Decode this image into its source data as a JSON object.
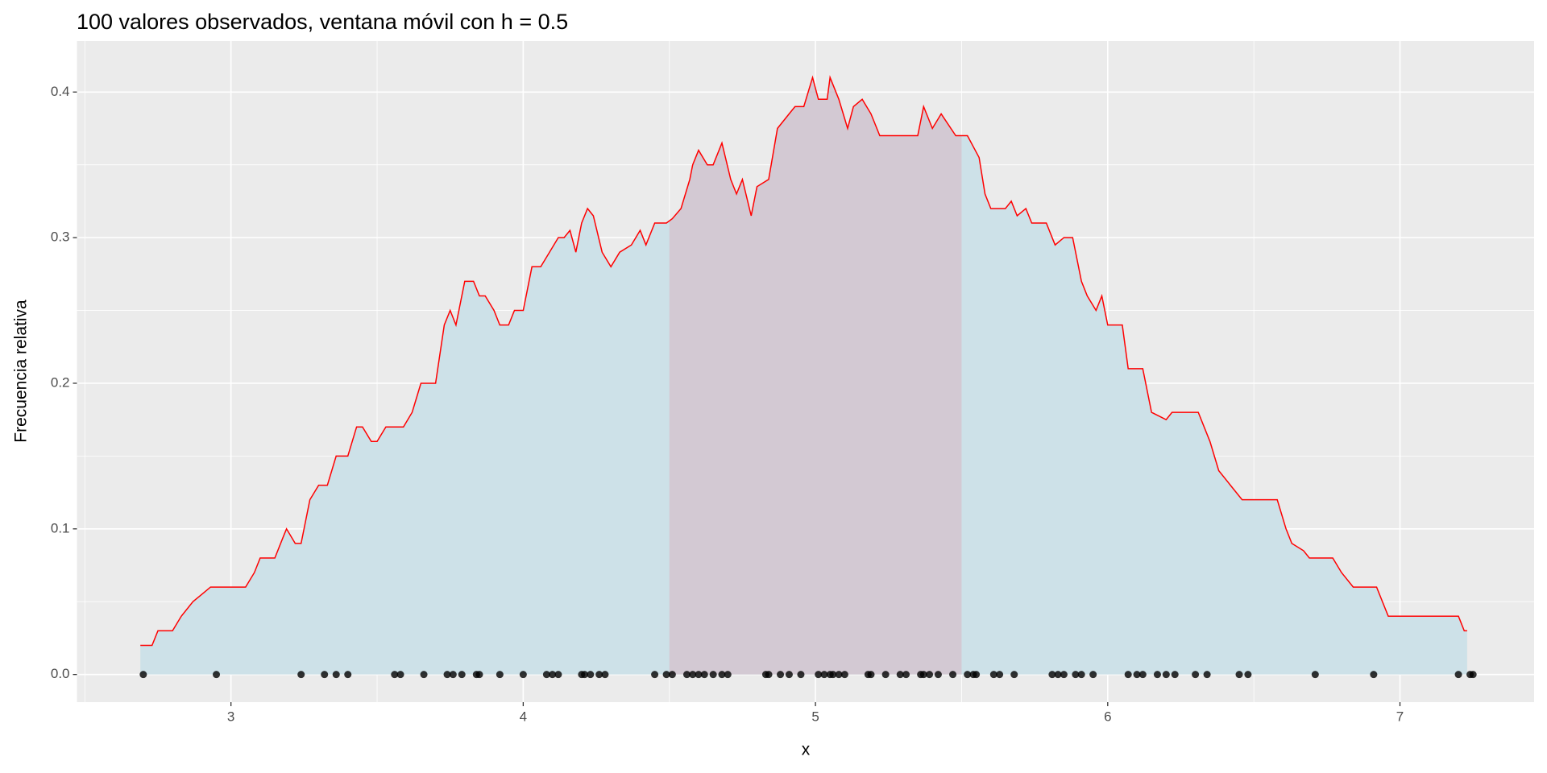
{
  "chart_data": {
    "type": "line",
    "title": "100 valores observados, ventana móvil con h = 0.5",
    "x_label": "x",
    "y_label": "Frecuencia relativa",
    "xlim": [
      2.473,
      7.459
    ],
    "ylim": [
      -0.019,
      0.435
    ],
    "xticks": [
      3,
      4,
      5,
      6,
      7
    ],
    "yticks": [
      {
        "value": 0,
        "label": "0.0"
      },
      0.1,
      0.2,
      0.3,
      0.4
    ],
    "grid": true,
    "minor_grid": true,
    "fill_color": "#cde1e8",
    "highlight_color": "#d3c9d3",
    "highlight_x": [
      4.5,
      5.5
    ],
    "series": [
      {
        "color": "#ff0000",
        "x": [
          2.69,
          2.73,
          2.75,
          2.8,
          2.83,
          2.87,
          2.9,
          2.93,
          3.05,
          3.08,
          3.1,
          3.15,
          3.18,
          3.19,
          3.22,
          3.24,
          3.27,
          3.3,
          3.33,
          3.36,
          3.4,
          3.43,
          3.45,
          3.48,
          3.5,
          3.53,
          3.59,
          3.62,
          3.65,
          3.7,
          3.73,
          3.75,
          3.77,
          3.8,
          3.83,
          3.85,
          3.87,
          3.9,
          3.92,
          3.95,
          3.97,
          4.0,
          4.03,
          4.06,
          4.09,
          4.12,
          4.14,
          4.16,
          4.18,
          4.2,
          4.22,
          4.24,
          4.27,
          4.3,
          4.33,
          4.37,
          4.4,
          4.42,
          4.45,
          4.49,
          4.51,
          4.54,
          4.57,
          4.58,
          4.6,
          4.63,
          4.65,
          4.68,
          4.71,
          4.73,
          4.75,
          4.78,
          4.8,
          4.84,
          4.87,
          4.91,
          4.93,
          4.96,
          4.99,
          5.01,
          5.04,
          5.05,
          5.08,
          5.11,
          5.13,
          5.16,
          5.19,
          5.22,
          5.35,
          5.37,
          5.4,
          5.43,
          5.48,
          5.52,
          5.56,
          5.58,
          5.6,
          5.65,
          5.67,
          5.69,
          5.72,
          5.74,
          5.79,
          5.82,
          5.85,
          5.88,
          5.91,
          5.93,
          5.96,
          5.98,
          6.0,
          6.05,
          6.07,
          6.12,
          6.15,
          6.2,
          6.22,
          6.31,
          6.35,
          6.38,
          6.42,
          6.46,
          6.58,
          6.61,
          6.63,
          6.67,
          6.69,
          6.77,
          6.8,
          6.84,
          6.92,
          6.96,
          7.2,
          7.22,
          7.23
        ],
        "values": [
          0.02,
          0.02,
          0.03,
          0.03,
          0.04,
          0.05,
          0.055,
          0.06,
          0.06,
          0.07,
          0.08,
          0.08,
          0.095,
          0.1,
          0.09,
          0.09,
          0.12,
          0.13,
          0.13,
          0.15,
          0.15,
          0.17,
          0.17,
          0.16,
          0.16,
          0.17,
          0.17,
          0.18,
          0.2,
          0.2,
          0.24,
          0.25,
          0.24,
          0.27,
          0.27,
          0.26,
          0.26,
          0.25,
          0.24,
          0.24,
          0.25,
          0.25,
          0.28,
          0.28,
          0.29,
          0.3,
          0.3,
          0.305,
          0.29,
          0.31,
          0.32,
          0.315,
          0.29,
          0.28,
          0.29,
          0.295,
          0.305,
          0.295,
          0.31,
          0.31,
          0.313,
          0.32,
          0.34,
          0.35,
          0.36,
          0.35,
          0.35,
          0.365,
          0.34,
          0.33,
          0.34,
          0.315,
          0.335,
          0.34,
          0.375,
          0.385,
          0.39,
          0.39,
          0.41,
          0.395,
          0.395,
          0.41,
          0.395,
          0.375,
          0.39,
          0.395,
          0.385,
          0.37,
          0.37,
          0.39,
          0.375,
          0.385,
          0.37,
          0.37,
          0.355,
          0.33,
          0.32,
          0.32,
          0.325,
          0.315,
          0.32,
          0.31,
          0.31,
          0.295,
          0.3,
          0.3,
          0.27,
          0.26,
          0.25,
          0.26,
          0.24,
          0.24,
          0.21,
          0.21,
          0.18,
          0.175,
          0.18,
          0.18,
          0.16,
          0.14,
          0.13,
          0.12,
          0.12,
          0.1,
          0.09,
          0.085,
          0.08,
          0.08,
          0.07,
          0.06,
          0.06,
          0.04,
          0.04,
          0.03,
          0.03
        ]
      }
    ],
    "points": {
      "color": "#000000",
      "x": [
        2.7,
        2.95,
        3.24,
        3.32,
        3.36,
        3.4,
        3.56,
        3.58,
        3.66,
        3.74,
        3.76,
        3.79,
        3.84,
        3.85,
        3.92,
        4.0,
        4.08,
        4.1,
        4.12,
        4.2,
        4.21,
        4.23,
        4.26,
        4.28,
        4.45,
        4.49,
        4.51,
        4.56,
        4.58,
        4.6,
        4.62,
        4.65,
        4.68,
        4.7,
        4.83,
        4.84,
        4.88,
        4.91,
        4.95,
        5.01,
        5.03,
        5.05,
        5.06,
        5.08,
        5.1,
        5.18,
        5.19,
        5.24,
        5.29,
        5.31,
        5.36,
        5.37,
        5.39,
        5.42,
        5.47,
        5.52,
        5.54,
        5.55,
        5.61,
        5.63,
        5.68,
        5.81,
        5.83,
        5.85,
        5.89,
        5.91,
        5.95,
        6.07,
        6.1,
        6.12,
        6.17,
        6.2,
        6.23,
        6.3,
        6.34,
        6.45,
        6.48,
        6.71,
        6.91,
        7.2,
        7.24,
        7.25
      ]
    }
  }
}
